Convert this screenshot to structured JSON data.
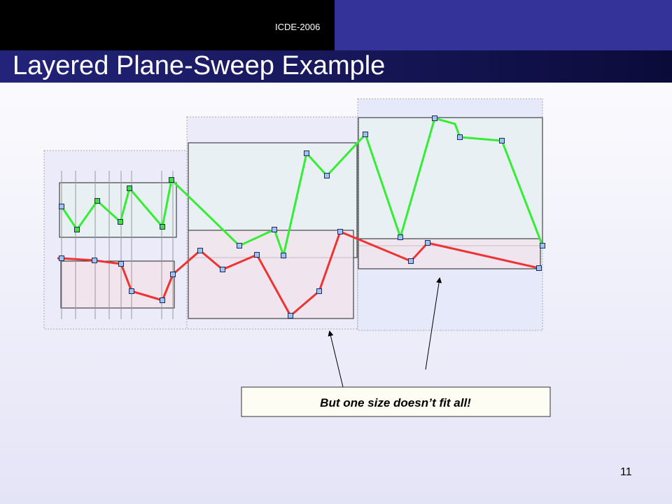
{
  "header": {
    "conference": "ICDE-2006",
    "title": "Layered Plane-Sweep Example"
  },
  "callout": "But one size doesn’t fit all!",
  "page_number": "11"
}
